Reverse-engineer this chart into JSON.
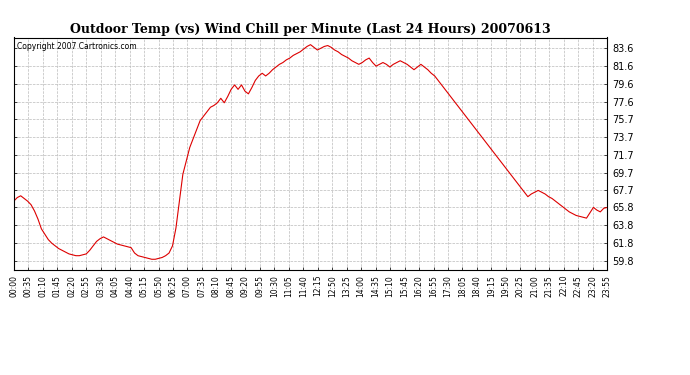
{
  "title": "Outdoor Temp (vs) Wind Chill per Minute (Last 24 Hours) 20070613",
  "copyright": "Copyright 2007 Cartronics.com",
  "line_color": "#dd0000",
  "background_color": "#ffffff",
  "grid_color": "#bbbbbb",
  "yticks": [
    59.8,
    61.8,
    63.8,
    65.8,
    67.7,
    69.7,
    71.7,
    73.7,
    75.7,
    77.6,
    79.6,
    81.6,
    83.6
  ],
  "ymin": 58.8,
  "ymax": 84.8,
  "xtick_labels": [
    "00:00",
    "00:35",
    "01:10",
    "01:45",
    "02:20",
    "02:55",
    "03:30",
    "04:05",
    "04:40",
    "05:15",
    "05:50",
    "06:25",
    "07:00",
    "07:35",
    "08:10",
    "08:45",
    "09:20",
    "09:55",
    "10:30",
    "11:05",
    "11:40",
    "12:15",
    "12:50",
    "13:25",
    "14:00",
    "14:35",
    "15:10",
    "15:45",
    "16:20",
    "16:55",
    "17:30",
    "18:05",
    "18:40",
    "19:15",
    "19:50",
    "20:25",
    "21:00",
    "21:35",
    "22:10",
    "22:45",
    "23:20",
    "23:55"
  ],
  "curve": [
    66.5,
    66.9,
    67.1,
    66.8,
    66.5,
    66.1,
    65.4,
    64.5,
    63.4,
    62.8,
    62.2,
    61.8,
    61.5,
    61.2,
    61.0,
    60.8,
    60.6,
    60.5,
    60.4,
    60.4,
    60.5,
    60.6,
    61.0,
    61.5,
    62.0,
    62.3,
    62.5,
    62.3,
    62.1,
    61.9,
    61.7,
    61.6,
    61.5,
    61.4,
    61.3,
    60.7,
    60.4,
    60.3,
    60.2,
    60.1,
    60.0,
    60.0,
    60.1,
    60.2,
    60.4,
    60.7,
    61.5,
    63.5,
    66.5,
    69.5,
    71.0,
    72.5,
    73.5,
    74.5,
    75.5,
    76.0,
    76.5,
    77.0,
    77.2,
    77.5,
    78.0,
    77.5,
    78.2,
    79.0,
    79.5,
    79.0,
    79.5,
    78.8,
    78.5,
    79.2,
    80.0,
    80.5,
    80.8,
    80.5,
    80.8,
    81.2,
    81.5,
    81.8,
    82.0,
    82.3,
    82.5,
    82.8,
    83.0,
    83.2,
    83.5,
    83.8,
    84.0,
    83.7,
    83.4,
    83.6,
    83.8,
    83.9,
    83.7,
    83.4,
    83.2,
    82.9,
    82.7,
    82.5,
    82.2,
    82.0,
    81.8,
    82.0,
    82.3,
    82.5,
    82.0,
    81.6,
    81.8,
    82.0,
    81.8,
    81.5,
    81.8,
    82.0,
    82.2,
    82.0,
    81.8,
    81.5,
    81.2,
    81.5,
    81.8,
    81.5,
    81.2,
    80.8,
    80.5,
    80.0,
    79.5,
    79.0,
    78.5,
    78.0,
    77.5,
    77.0,
    76.5,
    76.0,
    75.5,
    75.0,
    74.5,
    74.0,
    73.5,
    73.0,
    72.5,
    72.0,
    71.5,
    71.0,
    70.5,
    70.0,
    69.5,
    69.0,
    68.5,
    68.0,
    67.5,
    67.0,
    67.3,
    67.5,
    67.7,
    67.5,
    67.3,
    67.0,
    66.8,
    66.5,
    66.2,
    65.9,
    65.6,
    65.3,
    65.1,
    64.9,
    64.8,
    64.7,
    64.6,
    65.2,
    65.8,
    65.5,
    65.3,
    65.7,
    65.8
  ]
}
